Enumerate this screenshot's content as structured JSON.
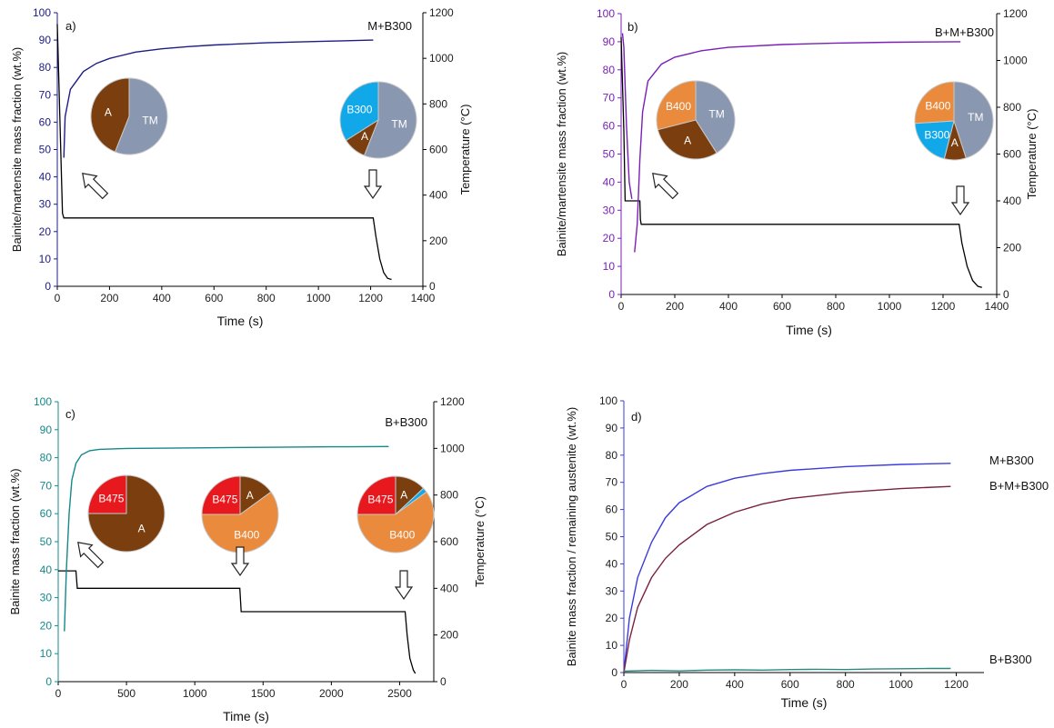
{
  "colors": {
    "axis": "#000000",
    "temperature": "#000000",
    "panel_a_series": "#1d1d86",
    "panel_b_series": "#7a1fb8",
    "panel_c_series": "#15888a",
    "panel_d_m": "#3b3bdc",
    "panel_d_bm": "#7a2040",
    "panel_d_b": "#2a8a7d",
    "A": "#7b3f0f",
    "TM": "#8a97b0",
    "B300": "#10a8e8",
    "B400": "#e98a3c",
    "B475": "#e8191e"
  },
  "chart_data": [
    {
      "type": "line",
      "panel_label": "a)",
      "annotation": "M+B300",
      "xlabel": "Time (s)",
      "ylabel": "Bainite/martensite mass fraction (wt.%)",
      "y2label": "Temperature (°C)",
      "xlim": [
        0,
        1400
      ],
      "ylim": [
        0,
        100
      ],
      "y2lim": [
        0,
        1200
      ],
      "xticks": [
        "0",
        "200",
        "400",
        "600",
        "800",
        "1000",
        "1200",
        "1400"
      ],
      "yticks": [
        "0",
        "10",
        "20",
        "30",
        "40",
        "50",
        "60",
        "70",
        "80",
        "90",
        "100"
      ],
      "y2ticks": [
        "0",
        "200",
        "400",
        "600",
        "800",
        "1000",
        "1200"
      ],
      "series": [
        {
          "x": [
            25,
            30,
            50,
            100,
            150,
            200,
            300,
            400,
            500,
            600,
            800,
            1000,
            1210
          ],
          "y": [
            47,
            62,
            72,
            78.5,
            81.5,
            83.3,
            85.6,
            86.8,
            87.6,
            88.2,
            89.0,
            89.5,
            90
          ]
        }
      ],
      "temperature": {
        "x": [
          0,
          20,
          25,
          1210,
          1220,
          1235,
          1250,
          1265,
          1280
        ],
        "y": [
          1150,
          320,
          300,
          300,
          220,
          120,
          60,
          35,
          30
        ]
      },
      "pies": [
        {
          "slices": [
            {
              "label": "TM",
              "value": 56
            },
            {
              "label": "A",
              "value": 44
            }
          ]
        },
        {
          "slices": [
            {
              "label": "TM",
              "value": 56
            },
            {
              "label": "A",
              "value": 10
            },
            {
              "label": "B300",
              "value": 34
            }
          ]
        }
      ]
    },
    {
      "type": "line",
      "panel_label": "b)",
      "annotation": "B+M+B300",
      "xlabel": "Time (s)",
      "ylabel": "Bainite/martensite mass fraction (wt.%)",
      "y2label": "Temperature (°C)",
      "xlim": [
        0,
        1400
      ],
      "ylim": [
        0,
        100
      ],
      "y2lim": [
        0,
        1200
      ],
      "xticks": [
        "0",
        "200",
        "400",
        "600",
        "800",
        "1000",
        "1200",
        "1400"
      ],
      "yticks": [
        "0",
        "10",
        "20",
        "30",
        "40",
        "50",
        "60",
        "70",
        "80",
        "90",
        "100"
      ],
      "y2ticks": [
        "0",
        "200",
        "400",
        "600",
        "800",
        "1000",
        "1200"
      ],
      "series": [
        {
          "x": [
            5,
            10,
            20,
            30,
            40
          ],
          "y": [
            93,
            88,
            60,
            40,
            34
          ]
        },
        {
          "x": [
            50,
            60,
            70,
            80,
            100,
            150,
            200,
            300,
            400,
            600,
            800,
            1000,
            1265
          ],
          "y": [
            15,
            25,
            48,
            65,
            76,
            82,
            84.5,
            86.8,
            88,
            89,
            89.5,
            89.8,
            90
          ]
        }
      ],
      "temperature": {
        "x": [
          0,
          10,
          15,
          20,
          70,
          72,
          75,
          1260,
          1270,
          1290,
          1310,
          1330,
          1345
        ],
        "y": [
          1100,
          700,
          400,
          400,
          400,
          320,
          300,
          300,
          220,
          120,
          60,
          35,
          30
        ]
      },
      "pies": [
        {
          "slices": [
            {
              "label": "TM",
              "value": 41
            },
            {
              "label": "A",
              "value": 30
            },
            {
              "label": "B400",
              "value": 29
            }
          ]
        },
        {
          "slices": [
            {
              "label": "TM",
              "value": 45
            },
            {
              "label": "A",
              "value": 9
            },
            {
              "label": "B300",
              "value": 20
            },
            {
              "label": "B400",
              "value": 26
            }
          ]
        }
      ]
    },
    {
      "type": "line",
      "panel_label": "c)",
      "annotation": "B+B300",
      "xlabel": "Time (s)",
      "ylabel": "Bainite mass fraction (wt.%)",
      "y2label": "Temperature (°C)",
      "xlim": [
        0,
        2750
      ],
      "ylim": [
        0,
        100
      ],
      "y2lim": [
        0,
        1200
      ],
      "xticks": [
        "0",
        "500",
        "1000",
        "1500",
        "2000",
        "2500"
      ],
      "yticks": [
        "0",
        "10",
        "20",
        "30",
        "40",
        "50",
        "60",
        "70",
        "80",
        "90",
        "100"
      ],
      "y2ticks": [
        "0",
        "200",
        "400",
        "600",
        "800",
        "1000",
        "1200"
      ],
      "series": [
        {
          "x": [
            45,
            60,
            80,
            100,
            130,
            170,
            230,
            300,
            500,
            1000,
            1500,
            2000,
            2420
          ],
          "y": [
            18,
            40,
            60,
            72,
            78,
            81,
            82.5,
            83,
            83.3,
            83.5,
            83.7,
            83.9,
            84
          ]
        }
      ],
      "temperature": {
        "x": [
          0,
          30,
          130,
          140,
          1330,
          1340,
          2540,
          2555,
          2575,
          2600,
          2615
        ],
        "y": [
          475,
          475,
          475,
          400,
          400,
          300,
          300,
          200,
          100,
          50,
          35
        ]
      },
      "pies": [
        {
          "slices": [
            {
              "label": "A",
              "value": 75
            },
            {
              "label": "B475",
              "value": 25
            }
          ]
        },
        {
          "slices": [
            {
              "label": "A",
              "value": 15
            },
            {
              "label": "B400",
              "value": 60
            },
            {
              "label": "B475",
              "value": 25
            }
          ]
        },
        {
          "slices": [
            {
              "label": "A",
              "value": 13
            },
            {
              "label": "B300",
              "value": 2
            },
            {
              "label": "B400",
              "value": 60
            },
            {
              "label": "B475",
              "value": 25
            }
          ]
        }
      ]
    },
    {
      "type": "line",
      "panel_label": "d)",
      "xlabel": "Time (s)",
      "ylabel": "Bainite mass fraction / remaining austenite (wt.%)",
      "xlim": [
        0,
        1300
      ],
      "ylim": [
        0,
        100
      ],
      "xticks": [
        "0",
        "200",
        "400",
        "600",
        "800",
        "1000",
        "1200"
      ],
      "yticks": [
        "0",
        "10",
        "20",
        "30",
        "40",
        "50",
        "60",
        "70",
        "80",
        "90",
        "100"
      ],
      "series": [
        {
          "name": "M+B300",
          "x": [
            0,
            20,
            50,
            100,
            150,
            200,
            300,
            400,
            500,
            600,
            800,
            1000,
            1180
          ],
          "y": [
            0,
            20,
            35,
            48,
            57,
            62.5,
            68.5,
            71.5,
            73.2,
            74.4,
            75.8,
            76.6,
            77
          ]
        },
        {
          "name": "B+M+B300",
          "x": [
            0,
            20,
            50,
            100,
            150,
            200,
            300,
            400,
            500,
            600,
            800,
            1000,
            1180
          ],
          "y": [
            0,
            12,
            24,
            35,
            42,
            47,
            54.5,
            59,
            62,
            64,
            66.3,
            67.7,
            68.5
          ]
        },
        {
          "name": "B+B300",
          "x": [
            0,
            100,
            200,
            300,
            400,
            500,
            600,
            700,
            800,
            900,
            1000,
            1100,
            1180
          ],
          "y": [
            0.5,
            0.8,
            0.6,
            0.9,
            1.0,
            0.9,
            1.1,
            1.2,
            1.1,
            1.3,
            1.4,
            1.5,
            1.5
          ]
        }
      ]
    }
  ]
}
